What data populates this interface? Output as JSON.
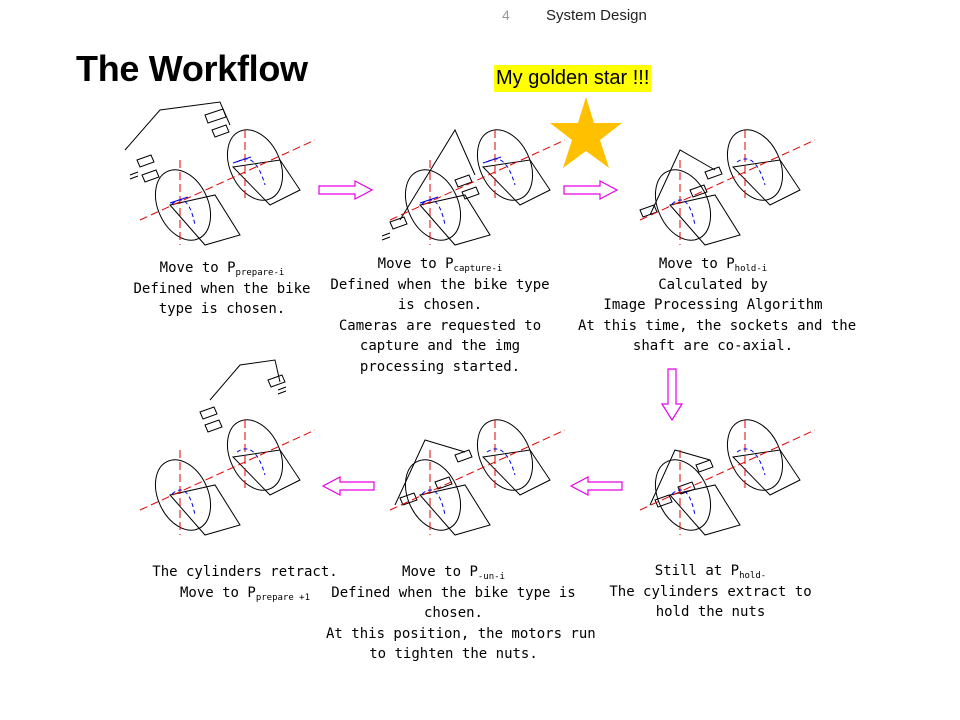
{
  "header": {
    "page_number": "4",
    "section": "System Design"
  },
  "title": "The Workflow",
  "callout": {
    "text": "My golden star !!!",
    "background": "#ffff00"
  },
  "star": {
    "icon": "star-icon",
    "color": "#ffc000"
  },
  "arrows": {
    "color": "#e600e6"
  },
  "steps": [
    {
      "line1_text": "Move to P",
      "line1_sub": "prepare-i",
      "lines": [
        "Defined when the bike",
        "type is chosen."
      ]
    },
    {
      "line1_text": "Move to P",
      "line1_sub": "capture-i",
      "lines": [
        "Defined when the bike type",
        "is chosen.",
        "Cameras are requested to",
        "capture and the img",
        "processing started."
      ]
    },
    {
      "line1_text": "Move to P",
      "line1_sub": "hold-i",
      "lines": [
        "Calculated by",
        "Image Processing Algorithm",
        "At this time, the sockets and the",
        "shaft are co-axial."
      ]
    },
    {
      "line1_text": "Still at P",
      "line1_sub": "hold-",
      "lines": [
        "The cylinders extract to",
        "hold the nuts"
      ]
    },
    {
      "line1_text": "Move to P",
      "line1_sub": "-un-i",
      "lines": [
        "Defined when the bike type is",
        "chosen.",
        "At this position, the motors run",
        "to tighten the nuts."
      ]
    },
    {
      "line0": "The cylinders retract.",
      "line1_text": "Move to P",
      "line1_sub": "prepare +1",
      "lines": []
    }
  ]
}
